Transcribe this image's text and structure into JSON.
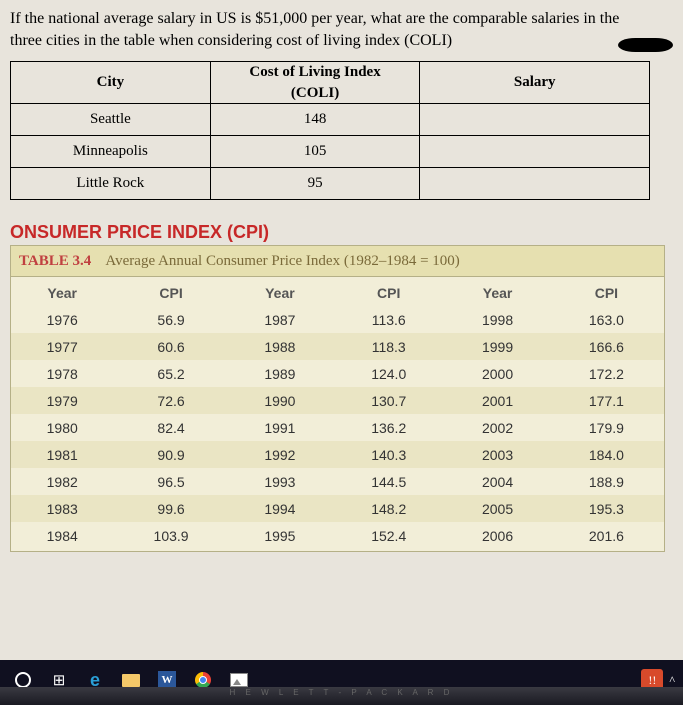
{
  "question": {
    "line1": "If the national average salary in US is $51,000 per year, what are the comparable salaries in the",
    "line2": "three cities in the table when considering cost of living index (COLI)"
  },
  "coli_table": {
    "headers": {
      "city": "City",
      "coli": "Cost of Living Index",
      "coli_sub": "(COLI)",
      "salary": "Salary"
    },
    "rows": [
      {
        "city": "Seattle",
        "coli": "148",
        "salary": ""
      },
      {
        "city": "Minneapolis",
        "coli": "105",
        "salary": ""
      },
      {
        "city": "Little Rock",
        "coli": "95",
        "salary": ""
      }
    ]
  },
  "section_title": "ONSUMER PRICE INDEX (CPI)",
  "cpi_table": {
    "label": "TABLE 3.4",
    "title": "Average Annual Consumer Price Index (1982–1984 = 100)",
    "col_headers": {
      "year": "Year",
      "cpi": "CPI"
    },
    "columns": [
      [
        {
          "year": "1976",
          "cpi": "56.9"
        },
        {
          "year": "1977",
          "cpi": "60.6"
        },
        {
          "year": "1978",
          "cpi": "65.2"
        },
        {
          "year": "1979",
          "cpi": "72.6"
        },
        {
          "year": "1980",
          "cpi": "82.4"
        },
        {
          "year": "1981",
          "cpi": "90.9"
        },
        {
          "year": "1982",
          "cpi": "96.5"
        },
        {
          "year": "1983",
          "cpi": "99.6"
        },
        {
          "year": "1984",
          "cpi": "103.9"
        }
      ],
      [
        {
          "year": "1987",
          "cpi": "113.6"
        },
        {
          "year": "1988",
          "cpi": "118.3"
        },
        {
          "year": "1989",
          "cpi": "124.0"
        },
        {
          "year": "1990",
          "cpi": "130.7"
        },
        {
          "year": "1991",
          "cpi": "136.2"
        },
        {
          "year": "1992",
          "cpi": "140.3"
        },
        {
          "year": "1993",
          "cpi": "144.5"
        },
        {
          "year": "1994",
          "cpi": "148.2"
        },
        {
          "year": "1995",
          "cpi": "152.4"
        }
      ],
      [
        {
          "year": "1998",
          "cpi": "163.0"
        },
        {
          "year": "1999",
          "cpi": "166.6"
        },
        {
          "year": "2000",
          "cpi": "172.2"
        },
        {
          "year": "2001",
          "cpi": "177.1"
        },
        {
          "year": "2002",
          "cpi": "179.9"
        },
        {
          "year": "2003",
          "cpi": "184.0"
        },
        {
          "year": "2004",
          "cpi": "188.9"
        },
        {
          "year": "2005",
          "cpi": "195.3"
        },
        {
          "year": "2006",
          "cpi": "201.6"
        }
      ]
    ]
  },
  "taskbar": {
    "word_label": "W",
    "notif": "!!",
    "caret": "^"
  },
  "keyboard_text": "H E W L E T T - P A C K A R D",
  "colors": {
    "paper_bg": "#e8e4dc",
    "cpi_header_bg": "#e6e0b0",
    "cpi_body_bg": "#f2eed8",
    "cpi_alt_bg": "#eae5c4",
    "section_red": "#c72828",
    "taskbar_bg": "#101020"
  }
}
